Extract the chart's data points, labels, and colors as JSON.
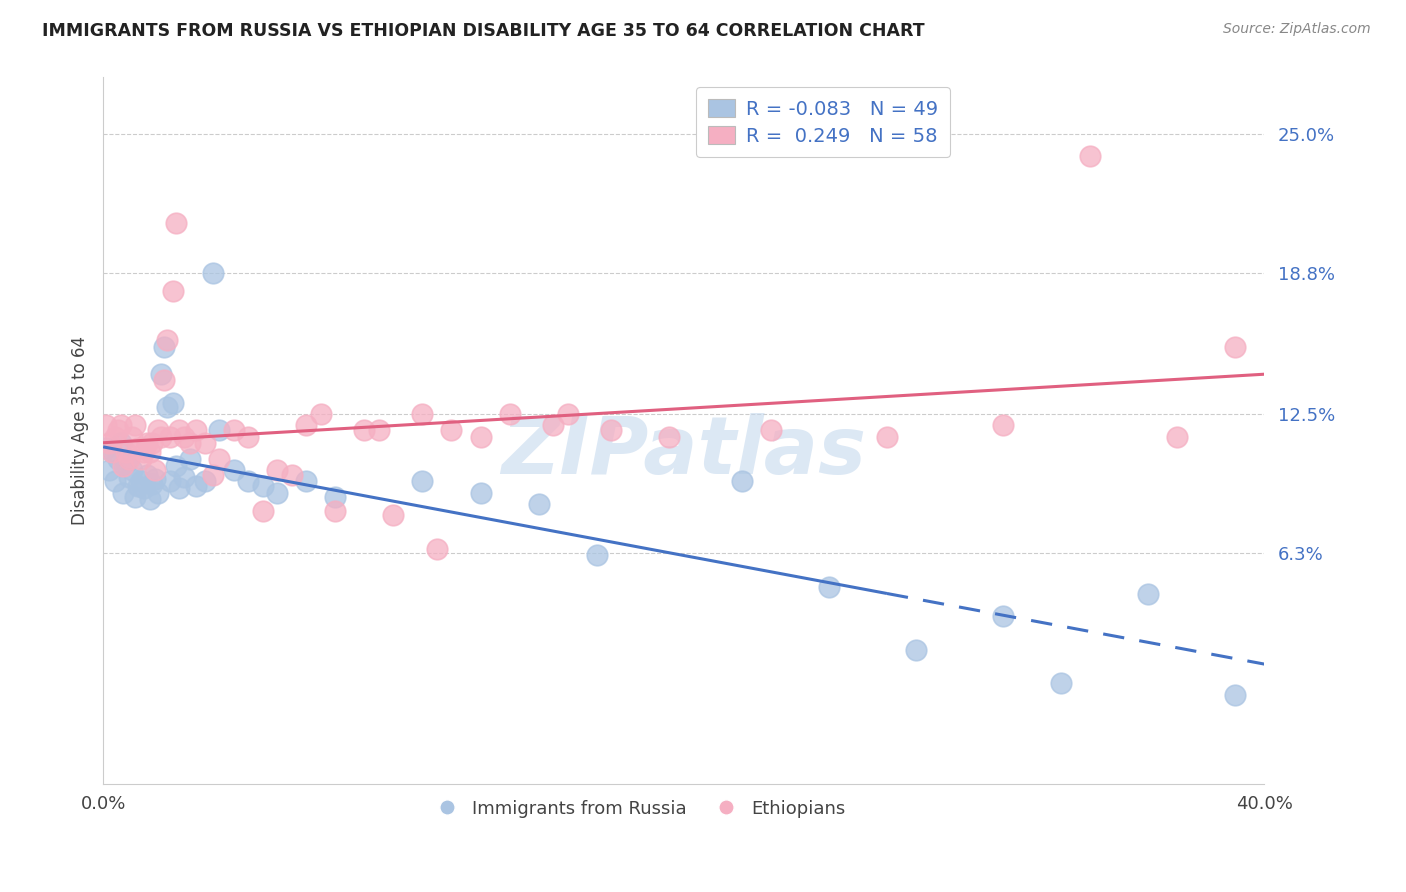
{
  "title": "IMMIGRANTS FROM RUSSIA VS ETHIOPIAN DISABILITY AGE 35 TO 64 CORRELATION CHART",
  "source": "Source: ZipAtlas.com",
  "ylabel": "Disability Age 35 to 64",
  "yticks": [
    "6.3%",
    "12.5%",
    "18.8%",
    "25.0%"
  ],
  "ytick_vals": [
    0.063,
    0.125,
    0.188,
    0.25
  ],
  "xmin": 0.0,
  "xmax": 0.4,
  "ymin": -0.04,
  "ymax": 0.275,
  "russia_R": "-0.083",
  "russia_N": "49",
  "ethiopia_R": "0.249",
  "ethiopia_N": "58",
  "russia_color": "#aac4e2",
  "ethiopia_color": "#f5afc2",
  "russia_line_color": "#4472c4",
  "ethiopia_line_color": "#e06080",
  "legend_label_russia": "Immigrants from Russia",
  "legend_label_ethiopia": "Ethiopians",
  "watermark": "ZIPatlas",
  "russia_x": [
    0.001,
    0.002,
    0.003,
    0.004,
    0.005,
    0.006,
    0.007,
    0.008,
    0.009,
    0.01,
    0.011,
    0.012,
    0.013,
    0.014,
    0.015,
    0.016,
    0.017,
    0.018,
    0.019,
    0.02,
    0.021,
    0.022,
    0.023,
    0.024,
    0.025,
    0.026,
    0.028,
    0.03,
    0.032,
    0.035,
    0.038,
    0.04,
    0.045,
    0.05,
    0.055,
    0.06,
    0.07,
    0.08,
    0.11,
    0.13,
    0.15,
    0.17,
    0.22,
    0.25,
    0.28,
    0.31,
    0.33,
    0.36,
    0.39
  ],
  "russia_y": [
    0.11,
    0.1,
    0.108,
    0.095,
    0.105,
    0.112,
    0.09,
    0.103,
    0.097,
    0.1,
    0.088,
    0.093,
    0.095,
    0.092,
    0.098,
    0.087,
    0.094,
    0.096,
    0.09,
    0.143,
    0.155,
    0.128,
    0.095,
    0.13,
    0.102,
    0.092,
    0.097,
    0.105,
    0.093,
    0.095,
    0.188,
    0.118,
    0.1,
    0.095,
    0.093,
    0.09,
    0.095,
    0.088,
    0.095,
    0.09,
    0.085,
    0.062,
    0.095,
    0.048,
    0.02,
    0.035,
    0.005,
    0.045,
    0.0
  ],
  "ethiopia_x": [
    0.001,
    0.002,
    0.003,
    0.004,
    0.005,
    0.006,
    0.007,
    0.008,
    0.009,
    0.01,
    0.011,
    0.012,
    0.013,
    0.014,
    0.015,
    0.016,
    0.017,
    0.018,
    0.019,
    0.02,
    0.021,
    0.022,
    0.023,
    0.024,
    0.025,
    0.026,
    0.028,
    0.03,
    0.032,
    0.035,
    0.038,
    0.04,
    0.045,
    0.05,
    0.055,
    0.06,
    0.065,
    0.07,
    0.08,
    0.09,
    0.1,
    0.11,
    0.12,
    0.13,
    0.14,
    0.155,
    0.175,
    0.195,
    0.23,
    0.27,
    0.31,
    0.34,
    0.37,
    0.075,
    0.095,
    0.115,
    0.39,
    0.16
  ],
  "ethiopia_y": [
    0.12,
    0.112,
    0.108,
    0.115,
    0.118,
    0.12,
    0.102,
    0.108,
    0.105,
    0.115,
    0.12,
    0.11,
    0.105,
    0.108,
    0.112,
    0.108,
    0.112,
    0.1,
    0.118,
    0.115,
    0.14,
    0.158,
    0.115,
    0.18,
    0.21,
    0.118,
    0.115,
    0.112,
    0.118,
    0.112,
    0.098,
    0.105,
    0.118,
    0.115,
    0.082,
    0.1,
    0.098,
    0.12,
    0.082,
    0.118,
    0.08,
    0.125,
    0.118,
    0.115,
    0.125,
    0.12,
    0.118,
    0.115,
    0.118,
    0.115,
    0.12,
    0.24,
    0.115,
    0.125,
    0.118,
    0.065,
    0.155,
    0.125
  ]
}
